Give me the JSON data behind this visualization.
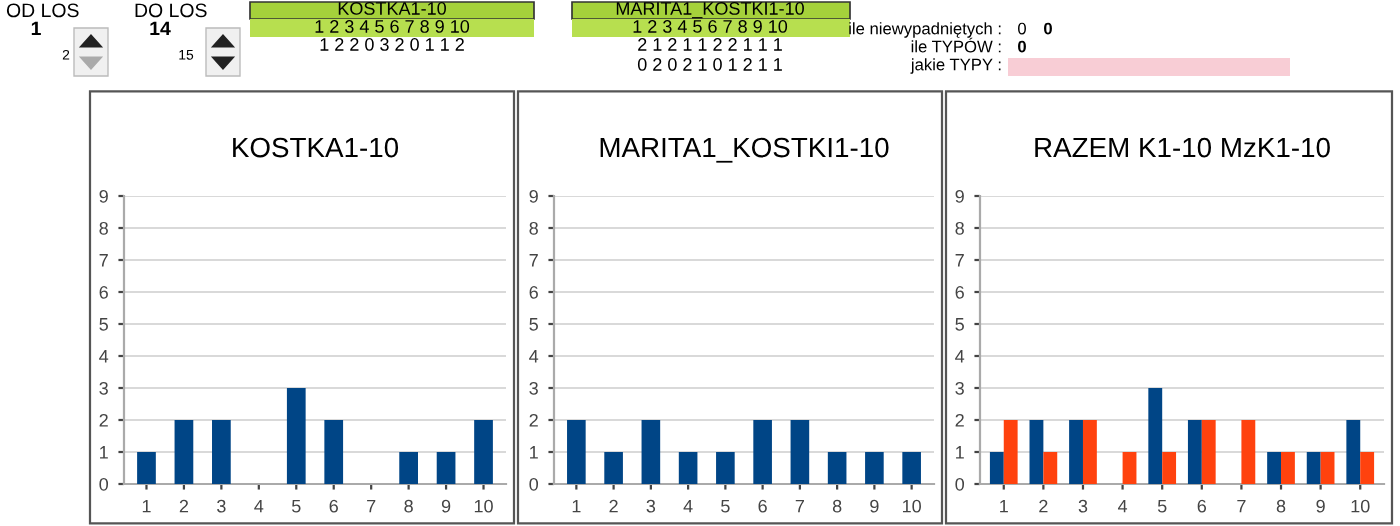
{
  "chart_data": [
    {
      "type": "other",
      "annotations": [
        "OD LOS",
        "1",
        "2",
        "DO LOS",
        "14",
        "15",
        "KOSTKA1-10",
        "1 2 3 4 5 6 7 8 9 10",
        "1 2 2 0 3 2 0 1 1 2",
        "MARITA1_KOSTKI1-10",
        "1 2 3 4 5 6 7 8 9 10",
        "2 1 2 1 1 2 2 1 1 1",
        "0 2 0 2 1 0 1 2 1 1",
        "ile niewypadniętych :",
        "0",
        "0",
        "ile TYPÓW :",
        "0",
        "jakie TYPY :"
      ]
    },
    {
      "type": "bar",
      "title": "KOSTKA1-10",
      "categories": [
        "1",
        "2",
        "3",
        "4",
        "5",
        "6",
        "7",
        "8",
        "9",
        "10"
      ],
      "series": [
        {
          "color": "#004586",
          "values": [
            1,
            2,
            2,
            0,
            3,
            2,
            0,
            1,
            1,
            2
          ]
        }
      ],
      "ylim": [
        0,
        9
      ],
      "yticks": [
        0,
        1,
        2,
        3,
        4,
        5,
        6,
        7,
        8,
        9
      ],
      "grid": "y"
    },
    {
      "type": "bar",
      "title": "MARITA1_KOSTKI1-10",
      "categories": [
        "1",
        "2",
        "3",
        "4",
        "5",
        "6",
        "7",
        "8",
        "9",
        "10"
      ],
      "series": [
        {
          "color": "#004586",
          "values": [
            2,
            1,
            2,
            1,
            1,
            2,
            2,
            1,
            1,
            1
          ]
        }
      ],
      "ylim": [
        0,
        9
      ],
      "yticks": [
        0,
        1,
        2,
        3,
        4,
        5,
        6,
        7,
        8,
        9
      ],
      "grid": "y"
    },
    {
      "type": "bar",
      "title": "RAZEM K1-10 MzK1-10",
      "categories": [
        "1",
        "2",
        "3",
        "4",
        "5",
        "6",
        "7",
        "8",
        "9",
        "10"
      ],
      "series": [
        {
          "color": "#004586",
          "values": [
            1,
            2,
            2,
            0,
            3,
            2,
            0,
            1,
            1,
            2
          ]
        },
        {
          "color": "#ff420e",
          "values": [
            2,
            1,
            2,
            1,
            1,
            2,
            2,
            1,
            1,
            1
          ]
        }
      ],
      "ylim": [
        0,
        9
      ],
      "yticks": [
        0,
        1,
        2,
        3,
        4,
        5,
        6,
        7,
        8,
        9
      ],
      "grid": "y"
    }
  ]
}
